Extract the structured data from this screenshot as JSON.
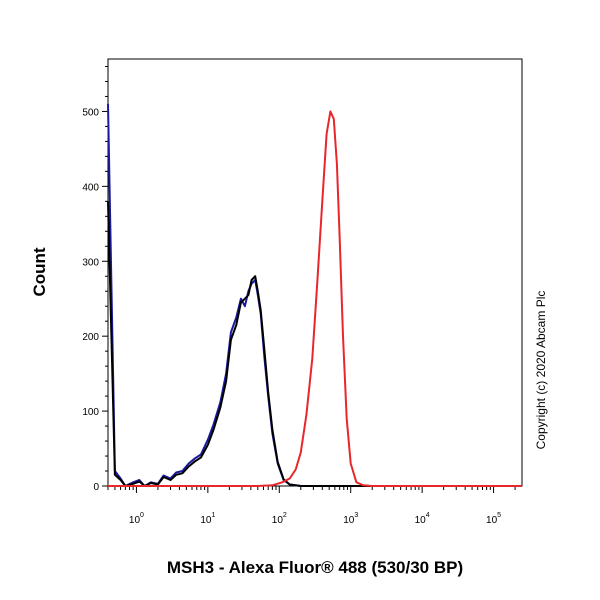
{
  "chart_data": {
    "type": "line",
    "xlabel": "MSH3 - Alexa Fluor® 488 (530/30 BP)",
    "ylabel": "Count",
    "x_scale": "log",
    "xlim": [
      0.4,
      250000
    ],
    "ylim": [
      0,
      570
    ],
    "xtick_base": [
      "10",
      "10",
      "10",
      "10",
      "10",
      "10"
    ],
    "xtick_exponents": [
      "0",
      "1",
      "2",
      "3",
      "4",
      "5"
    ],
    "xtick_values": [
      1,
      10,
      100,
      1000,
      10000,
      100000
    ],
    "ytick_labels": [
      "0",
      "100",
      "200",
      "300",
      "400",
      "500"
    ],
    "ytick_values": [
      0,
      100,
      200,
      300,
      400,
      500
    ],
    "series": [
      {
        "color": "#1a1aa0",
        "x": [
          0.4,
          0.5,
          0.6,
          0.7,
          0.9,
          1.1,
          1.3,
          1.6,
          2.0,
          2.4,
          3.0,
          3.6,
          4.4,
          5.4,
          6.6,
          8.0,
          10,
          12,
          15,
          18,
          21,
          25,
          29,
          33,
          37,
          41,
          46,
          50,
          55,
          62,
          70,
          80,
          95,
          115,
          140,
          200,
          1000,
          250000
        ],
        "y": [
          510,
          20,
          10,
          0,
          5,
          8,
          0,
          5,
          3,
          14,
          10,
          18,
          20,
          30,
          37,
          42,
          62,
          82,
          112,
          150,
          205,
          225,
          250,
          240,
          260,
          270,
          275,
          255,
          230,
          170,
          120,
          70,
          30,
          8,
          2,
          0,
          0,
          0
        ]
      },
      {
        "color": "#000000",
        "x": [
          0.4,
          0.5,
          0.6,
          0.7,
          0.9,
          1.1,
          1.3,
          1.6,
          2.0,
          2.4,
          3.0,
          3.6,
          4.4,
          5.4,
          6.6,
          8.0,
          10,
          12,
          15,
          18,
          21,
          25,
          29,
          33,
          37,
          41,
          46,
          50,
          55,
          62,
          70,
          80,
          95,
          115,
          140,
          200,
          1000,
          250000
        ],
        "y": [
          380,
          15,
          8,
          0,
          3,
          6,
          0,
          4,
          2,
          12,
          8,
          15,
          17,
          26,
          33,
          38,
          55,
          75,
          105,
          140,
          195,
          215,
          245,
          250,
          255,
          275,
          280,
          260,
          235,
          180,
          125,
          75,
          32,
          9,
          2,
          0,
          0,
          0
        ]
      },
      {
        "color": "#e8272a",
        "x": [
          0.4,
          50,
          80,
          110,
          140,
          170,
          200,
          240,
          290,
          340,
          400,
          460,
          520,
          580,
          640,
          700,
          780,
          880,
          1000,
          1200,
          1500,
          2000,
          5000,
          250000
        ],
        "y": [
          0,
          0,
          1,
          5,
          10,
          22,
          45,
          95,
          170,
          270,
          380,
          470,
          500,
          490,
          430,
          330,
          200,
          90,
          30,
          5,
          1,
          0,
          0,
          0
        ]
      }
    ]
  },
  "copyright": "Copyright (c) 2020 Abcam Plc"
}
